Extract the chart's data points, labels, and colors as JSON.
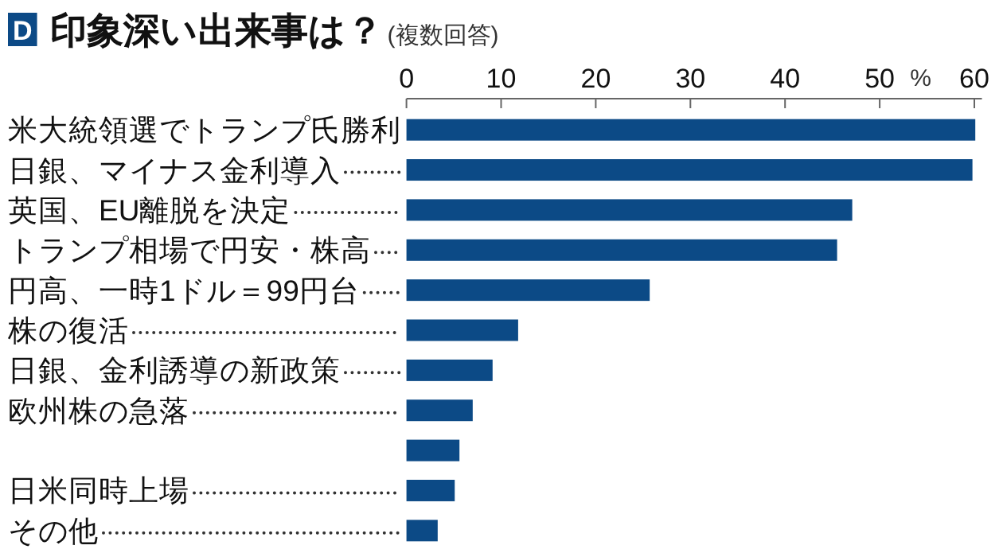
{
  "chart_data": {
    "type": "bar",
    "orientation": "horizontal",
    "title": "印象深い出来事は？",
    "subtitle": "(複数回答)",
    "xlabel": "%",
    "annotations": [
      "D"
    ],
    "categories": [
      "米大統領選でトランプ氏勝利",
      "日銀、マイナス金利導入",
      "英国、EU離脱を決定",
      "トランプ相場で円安・株高",
      "円高、一時1ドル＝99円台",
      "株の復活",
      "日銀、金利誘導の新政策",
      "欧州株の急落",
      null,
      "日米同時上場",
      "その他"
    ],
    "values": [
      60.1,
      59.8,
      47.1,
      45.5,
      25.7,
      11.8,
      9.1,
      7.0,
      5.6,
      5.1,
      3.3
    ],
    "color": "#0c4a86",
    "xlim": [
      0,
      60.8
    ],
    "xticks": [
      0,
      10,
      20,
      30,
      40,
      50,
      60
    ]
  }
}
